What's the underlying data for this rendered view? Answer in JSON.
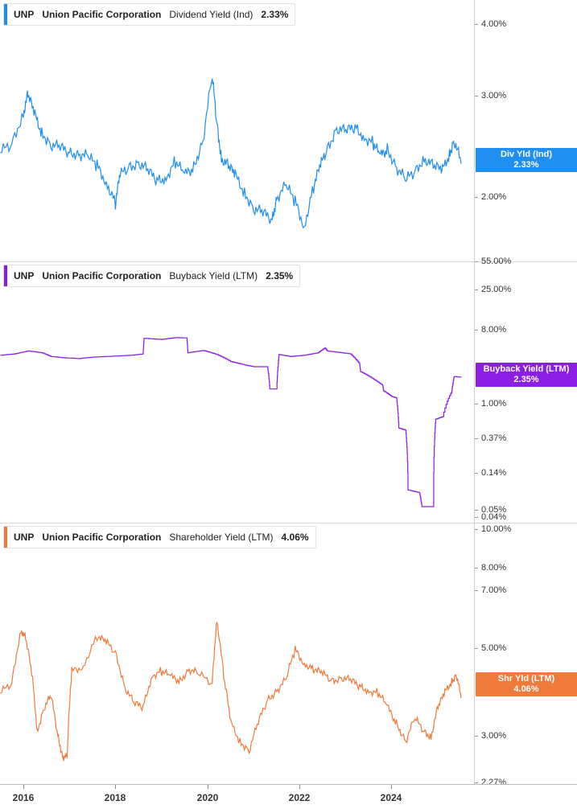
{
  "ticker": "UNP",
  "company": "Union Pacific Corporation",
  "panels": [
    {
      "metric": "Dividend Yield (Ind)",
      "value_label": "2.33%",
      "flag_name": "Div Yld (Ind)",
      "flag_value": "2.33%",
      "color": "#1f8ef1",
      "yticks": [
        "4.00%",
        "3.00%",
        "2.00%"
      ]
    },
    {
      "metric": "Buyback Yield (LTM)",
      "value_label": "2.35%",
      "flag_name": "Buyback Yield (LTM)",
      "flag_value": "2.35%",
      "color": "#8a1ee6",
      "yticks": [
        "55.00%",
        "25.00%",
        "8.00%",
        "1.00%",
        "0.37%",
        "0.14%",
        "0.05%",
        "0.04%"
      ]
    },
    {
      "metric": "Shareholder Yield (LTM)",
      "value_label": "4.06%",
      "flag_name": "Shr Yld (LTM)",
      "flag_value": "4.06%",
      "color": "#f07a3c",
      "yticks": [
        "10.00%",
        "8.00%",
        "7.00%",
        "5.00%",
        "3.00%",
        "2.27%"
      ]
    }
  ],
  "x_labels": [
    "2016",
    "2018",
    "2020",
    "2022",
    "2024"
  ],
  "chart_data": [
    {
      "type": "line",
      "title": "UNP Union Pacific Corporation Dividend Yield (Ind)",
      "series": [
        {
          "name": "Dividend Yield (Ind)",
          "color": "#1f8ef1",
          "x": [
            2015.5,
            2015.75,
            2016.0,
            2016.1,
            2016.25,
            2016.4,
            2016.6,
            2016.8,
            2017.0,
            2017.2,
            2017.4,
            2017.6,
            2017.8,
            2018.0,
            2018.1,
            2018.3,
            2018.5,
            2018.7,
            2018.9,
            2019.1,
            2019.3,
            2019.5,
            2019.7,
            2019.9,
            2020.1,
            2020.2,
            2020.3,
            2020.45,
            2020.6,
            2020.8,
            2021.0,
            2021.2,
            2021.4,
            2021.5,
            2021.7,
            2021.9,
            2022.1,
            2022.3,
            2022.45,
            2022.6,
            2022.8,
            2023.0,
            2023.2,
            2023.4,
            2023.6,
            2023.75,
            2023.9,
            2024.1,
            2024.3,
            2024.5,
            2024.7,
            2024.9,
            2025.1,
            2025.25,
            2025.35,
            2025.5
          ],
          "values": [
            2.45,
            2.55,
            2.95,
            3.2,
            2.9,
            2.7,
            2.55,
            2.5,
            2.45,
            2.45,
            2.4,
            2.3,
            2.15,
            1.95,
            2.2,
            2.3,
            2.35,
            2.25,
            2.15,
            2.2,
            2.35,
            2.2,
            2.3,
            2.6,
            3.45,
            2.8,
            2.4,
            2.3,
            2.2,
            2.05,
            1.9,
            1.85,
            1.8,
            2.0,
            2.1,
            1.95,
            1.75,
            2.1,
            2.3,
            2.5,
            2.75,
            2.7,
            2.75,
            2.65,
            2.55,
            2.4,
            2.5,
            2.3,
            2.15,
            2.25,
            2.4,
            2.3,
            2.25,
            2.45,
            2.6,
            2.33
          ]
        }
      ],
      "ylim": [
        1.6,
        4.6
      ],
      "scale": "log"
    },
    {
      "type": "line",
      "title": "UNP Union Pacific Corporation Buyback Yield (LTM)",
      "series": [
        {
          "name": "Buyback Yield (LTM)",
          "color": "#8a1ee6",
          "x": [
            2015.5,
            2015.8,
            2016.1,
            2016.4,
            2016.6,
            2016.9,
            2017.2,
            2017.5,
            2017.8,
            2018.1,
            2018.35,
            2018.6,
            2018.62,
            2019.0,
            2019.3,
            2019.55,
            2019.57,
            2019.9,
            2020.2,
            2020.5,
            2020.8,
            2021.0,
            2021.3,
            2021.35,
            2021.5,
            2021.55,
            2021.8,
            2022.1,
            2022.4,
            2022.55,
            2022.6,
            2022.8,
            2023.1,
            2023.3,
            2023.32,
            2023.6,
            2023.8,
            2023.82,
            2024.0,
            2024.1,
            2024.15,
            2024.3,
            2024.35,
            2024.6,
            2024.65,
            2024.9,
            2024.95,
            2025.1,
            2025.3,
            2025.35,
            2025.5
          ],
          "values": [
            4.8,
            5.0,
            5.5,
            5.2,
            4.6,
            4.4,
            4.3,
            4.5,
            4.6,
            4.7,
            4.8,
            5.0,
            8.3,
            8.0,
            8.5,
            8.4,
            5.2,
            5.6,
            4.9,
            3.9,
            3.5,
            3.3,
            3.3,
            1.6,
            1.6,
            4.9,
            4.6,
            4.8,
            5.2,
            6.1,
            5.5,
            5.3,
            5.0,
            3.6,
            2.8,
            2.2,
            1.8,
            1.5,
            1.25,
            1.2,
            0.45,
            0.42,
            0.06,
            0.055,
            0.035,
            0.035,
            0.6,
            0.65,
            1.5,
            2.4,
            2.35
          ]
        }
      ],
      "ylim": [
        0.035,
        60
      ],
      "scale": "log"
    },
    {
      "type": "line",
      "title": "UNP Union Pacific Corporation Shareholder Yield (LTM)",
      "series": [
        {
          "name": "Shareholder Yield (LTM)",
          "color": "#f07a3c",
          "x": [
            2015.5,
            2015.75,
            2015.95,
            2016.05,
            2016.2,
            2016.3,
            2016.45,
            2016.6,
            2016.75,
            2016.85,
            2016.95,
            2017.05,
            2017.3,
            2017.6,
            2017.8,
            2018.0,
            2018.2,
            2018.4,
            2018.6,
            2018.8,
            2019.0,
            2019.2,
            2019.4,
            2019.6,
            2019.8,
            2020.1,
            2020.2,
            2020.35,
            2020.5,
            2020.7,
            2020.9,
            2021.1,
            2021.3,
            2021.5,
            2021.7,
            2021.9,
            2022.1,
            2022.3,
            2022.5,
            2022.7,
            2022.9,
            2023.1,
            2023.3,
            2023.5,
            2023.7,
            2023.9,
            2024.1,
            2024.3,
            2024.5,
            2024.7,
            2024.85,
            2025.0,
            2025.15,
            2025.3,
            2025.4,
            2025.5
          ],
          "values": [
            4.2,
            4.5,
            6.6,
            6.2,
            4.6,
            3.2,
            3.8,
            4.1,
            3.1,
            2.7,
            2.65,
            4.9,
            5.1,
            6.3,
            6.0,
            5.6,
            4.4,
            3.9,
            3.8,
            4.8,
            4.9,
            4.7,
            4.6,
            5.0,
            4.8,
            4.5,
            7.1,
            4.7,
            3.4,
            3.0,
            2.8,
            3.4,
            4.0,
            4.3,
            4.6,
            5.7,
            5.2,
            5.0,
            4.8,
            4.6,
            4.7,
            4.6,
            4.4,
            4.3,
            4.2,
            3.8,
            3.4,
            3.0,
            3.5,
            3.2,
            3.1,
            3.8,
            4.2,
            4.6,
            4.8,
            4.06
          ]
        }
      ],
      "ylim": [
        2.27,
        10.0
      ],
      "scale": "log"
    }
  ]
}
